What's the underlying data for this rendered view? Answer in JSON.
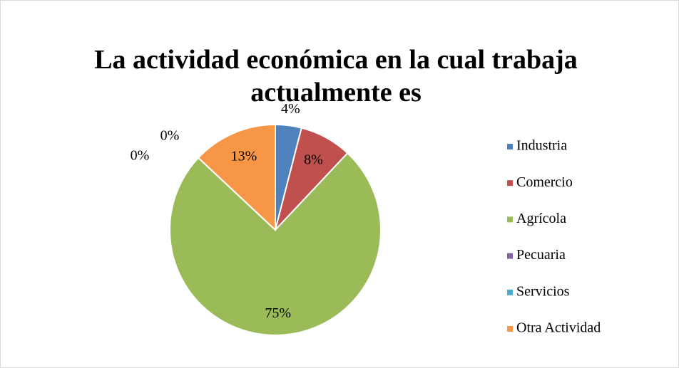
{
  "chart_data": {
    "type": "pie",
    "title": "La actividad económica en la cual trabaja actualmente es",
    "categories": [
      "Industria",
      "Comercio",
      "Agrícola",
      "Pecuaria",
      "Servicios",
      "Otra Actividad"
    ],
    "values": [
      4,
      8,
      75,
      0,
      0,
      13
    ],
    "value_labels": [
      "4%",
      "8%",
      "75%",
      "0%",
      "0%",
      "13%"
    ],
    "colors": [
      "#4f81bd",
      "#c0504d",
      "#9bbb59",
      "#8064a2",
      "#4bacc6",
      "#f79646"
    ],
    "legend": "right"
  }
}
